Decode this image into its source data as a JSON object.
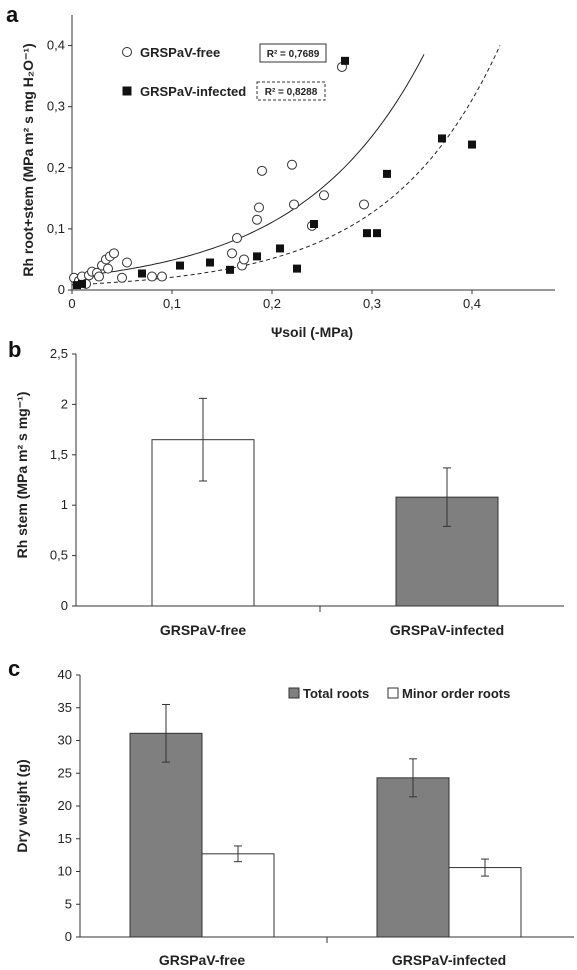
{
  "chart_data": [
    {
      "panel": "a",
      "type": "scatter",
      "xlabel": "Ψsoil (-MPa)",
      "ylabel": "Rh root+stem (MPa m² s mg H₂O⁻¹)",
      "xlim": [
        0,
        0.45
      ],
      "ylim": [
        0,
        0.45
      ],
      "x_ticks": [
        "0",
        "0,1",
        "0,2",
        "0,3",
        "0,4"
      ],
      "y_ticks": [
        "0",
        "0,1",
        "0,2",
        "0,3",
        "0,4"
      ],
      "legend_placement": "top-left",
      "series": [
        {
          "name": "GRSPaV-free",
          "marker": "open-circle",
          "r2": "R² = 0,7689",
          "trend": "solid",
          "points": [
            [
              0.002,
              0.02
            ],
            [
              0.007,
              0.015
            ],
            [
              0.01,
              0.022
            ],
            [
              0.014,
              0.01
            ],
            [
              0.017,
              0.024
            ],
            [
              0.02,
              0.03
            ],
            [
              0.025,
              0.028
            ],
            [
              0.027,
              0.022
            ],
            [
              0.03,
              0.04
            ],
            [
              0.034,
              0.05
            ],
            [
              0.036,
              0.035
            ],
            [
              0.038,
              0.055
            ],
            [
              0.042,
              0.06
            ],
            [
              0.05,
              0.02
            ],
            [
              0.055,
              0.045
            ],
            [
              0.08,
              0.022
            ],
            [
              0.09,
              0.022
            ],
            [
              0.16,
              0.06
            ],
            [
              0.165,
              0.085
            ],
            [
              0.17,
              0.04
            ],
            [
              0.172,
              0.05
            ],
            [
              0.185,
              0.115
            ],
            [
              0.187,
              0.135
            ],
            [
              0.19,
              0.195
            ],
            [
              0.22,
              0.205
            ],
            [
              0.222,
              0.14
            ],
            [
              0.24,
              0.105
            ],
            [
              0.252,
              0.155
            ],
            [
              0.27,
              0.365
            ],
            [
              0.292,
              0.14
            ]
          ]
        },
        {
          "name": "GRSPaV-infected",
          "marker": "filled-square",
          "r2": "R² = 0,8288",
          "trend": "dashed",
          "points": [
            [
              0.005,
              0.008
            ],
            [
              0.01,
              0.01
            ],
            [
              0.07,
              0.027
            ],
            [
              0.108,
              0.04
            ],
            [
              0.138,
              0.045
            ],
            [
              0.158,
              0.033
            ],
            [
              0.185,
              0.055
            ],
            [
              0.208,
              0.068
            ],
            [
              0.225,
              0.035
            ],
            [
              0.242,
              0.108
            ],
            [
              0.273,
              0.375
            ],
            [
              0.295,
              0.093
            ],
            [
              0.305,
              0.093
            ],
            [
              0.315,
              0.19
            ],
            [
              0.37,
              0.248
            ],
            [
              0.4,
              0.238
            ]
          ]
        }
      ]
    },
    {
      "panel": "b",
      "type": "bar",
      "ylabel": "Rh stem (MPa m² s mg⁻¹)",
      "ylim": [
        0,
        2.5
      ],
      "y_ticks": [
        "0",
        "0,5",
        "1",
        "1,5",
        "2",
        "2,5"
      ],
      "categories": [
        "GRSPaV-free",
        "GRSPaV-infected"
      ],
      "values": [
        1.65,
        1.08
      ],
      "errors": [
        0.41,
        0.29
      ],
      "colors": [
        "#ffffff",
        "#7f7f7f"
      ]
    },
    {
      "panel": "c",
      "type": "bar",
      "ylabel": "Dry weight (g)",
      "ylim": [
        0,
        40
      ],
      "y_ticks": [
        "0",
        "5",
        "10",
        "15",
        "20",
        "25",
        "30",
        "35",
        "40"
      ],
      "categories": [
        "GRSPaV-free",
        "GRSPaV-infected"
      ],
      "legend_placement": "top-right",
      "series": [
        {
          "name": "Total roots",
          "values": [
            31.1,
            24.3
          ],
          "errors": [
            4.4,
            2.9
          ],
          "color": "#7f7f7f"
        },
        {
          "name": "Minor order roots",
          "values": [
            12.7,
            10.6
          ],
          "errors": [
            1.2,
            1.3
          ],
          "color": "#ffffff"
        }
      ]
    }
  ]
}
